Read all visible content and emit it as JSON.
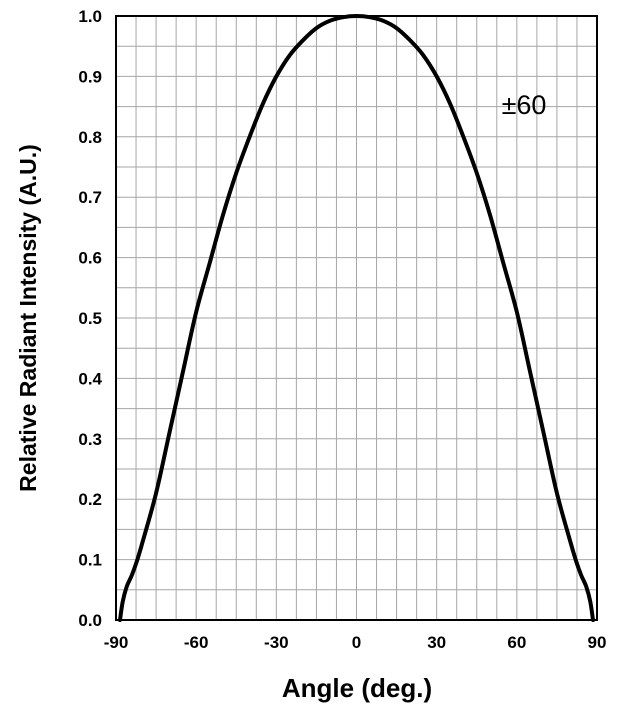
{
  "chart_data": {
    "type": "line",
    "xlabel": "Angle (deg.)",
    "ylabel": "Relative Radiant Intensity (A.U.)",
    "annotation": "±60",
    "xlim": [
      -90,
      90
    ],
    "ylim": [
      0,
      1.0
    ],
    "x_ticks": [
      -90,
      -60,
      -30,
      0,
      30,
      60,
      90
    ],
    "x_tick_labels": [
      "-90",
      "-60",
      "-30",
      "0",
      "30",
      "60",
      "90"
    ],
    "y_ticks": [
      0,
      0.1,
      0.2,
      0.3,
      0.4,
      0.5,
      0.6,
      0.7,
      0.8,
      0.9,
      1.0
    ],
    "y_tick_labels": [
      "0.0",
      "0.1",
      "0.2",
      "0.3",
      "0.4",
      "0.5",
      "0.6",
      "0.7",
      "0.8",
      "0.9",
      "1.0"
    ],
    "grid": true,
    "grid_x_step": 7.5,
    "grid_y_step": 0.05,
    "series": [
      {
        "color": "#000000",
        "points": [
          [
            -88.5,
            0.0
          ],
          [
            -87.5,
            0.03
          ],
          [
            -86,
            0.055
          ],
          [
            -84,
            0.075
          ],
          [
            -82,
            0.1
          ],
          [
            -80,
            0.13
          ],
          [
            -75,
            0.21
          ],
          [
            -70,
            0.31
          ],
          [
            -65,
            0.41
          ],
          [
            -60,
            0.51
          ],
          [
            -55,
            0.59
          ],
          [
            -50,
            0.67
          ],
          [
            -45,
            0.74
          ],
          [
            -40,
            0.8
          ],
          [
            -35,
            0.855
          ],
          [
            -30,
            0.9
          ],
          [
            -25,
            0.935
          ],
          [
            -20,
            0.96
          ],
          [
            -15,
            0.98
          ],
          [
            -10,
            0.992
          ],
          [
            -5,
            0.998
          ],
          [
            0,
            1.0
          ],
          [
            5,
            0.998
          ],
          [
            10,
            0.992
          ],
          [
            15,
            0.98
          ],
          [
            20,
            0.96
          ],
          [
            25,
            0.935
          ],
          [
            30,
            0.9
          ],
          [
            35,
            0.855
          ],
          [
            40,
            0.8
          ],
          [
            45,
            0.74
          ],
          [
            50,
            0.67
          ],
          [
            55,
            0.59
          ],
          [
            60,
            0.51
          ],
          [
            65,
            0.41
          ],
          [
            70,
            0.31
          ],
          [
            75,
            0.21
          ],
          [
            80,
            0.13
          ],
          [
            82,
            0.1
          ],
          [
            84,
            0.075
          ],
          [
            86,
            0.055
          ],
          [
            87.5,
            0.03
          ],
          [
            88.5,
            0.0
          ]
        ]
      }
    ]
  }
}
